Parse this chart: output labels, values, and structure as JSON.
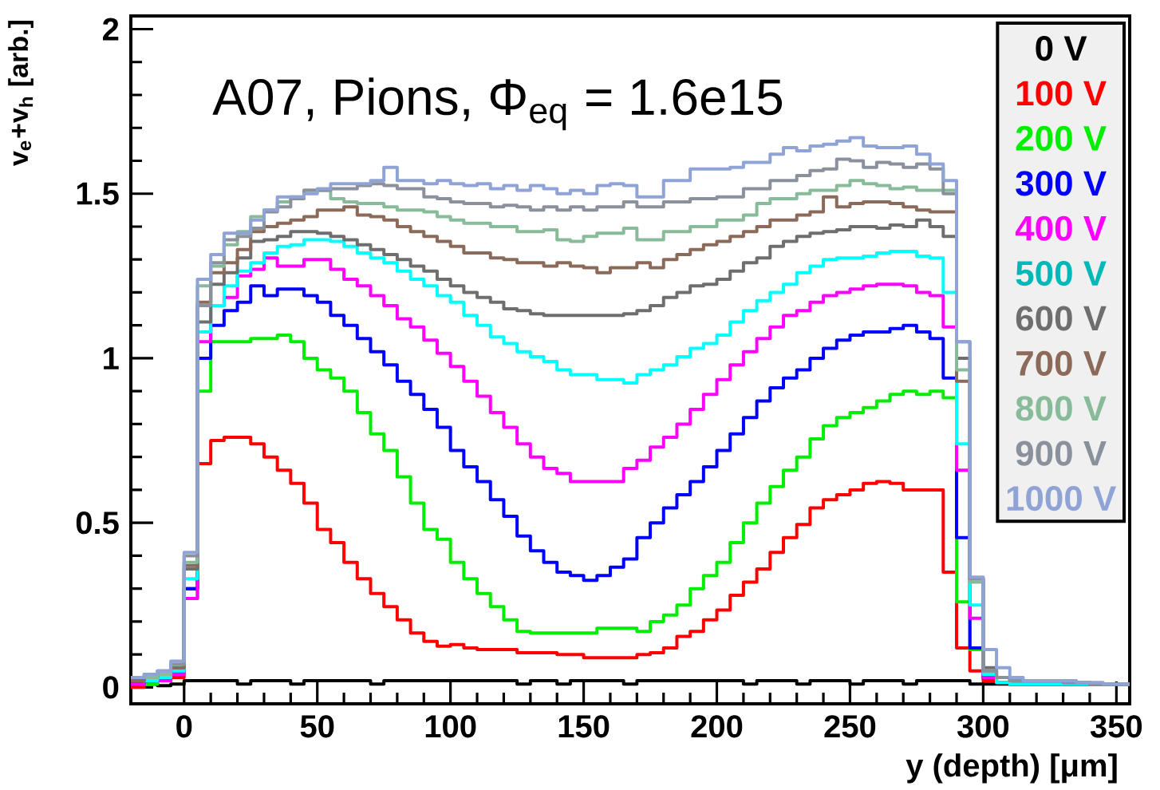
{
  "chart_data": {
    "type": "histogram",
    "annotations": [
      "A07, Pions, Φ$_{eq}$ = 1.6e15"
    ],
    "xlabel": "y (depth) [μm]",
    "ylabel": "v$_{e}$+v$_{h}$ [arb.]",
    "xlim": [
      -20,
      355
    ],
    "ylim": [
      -0.05,
      2.04
    ],
    "xticks": [
      0,
      50,
      100,
      150,
      200,
      250,
      300,
      350
    ],
    "yticks": [
      0,
      0.5,
      1,
      1.5,
      2
    ],
    "legend": "top right",
    "bins": [
      -20,
      -15,
      -10,
      -5,
      0,
      5,
      10,
      15,
      20,
      25,
      30,
      35,
      40,
      45,
      50,
      55,
      60,
      65,
      70,
      75,
      80,
      85,
      90,
      95,
      100,
      105,
      110,
      115,
      120,
      125,
      130,
      135,
      140,
      145,
      150,
      155,
      160,
      165,
      170,
      175,
      180,
      185,
      190,
      195,
      200,
      205,
      210,
      215,
      220,
      225,
      230,
      235,
      240,
      245,
      250,
      255,
      260,
      265,
      270,
      275,
      280,
      285,
      290,
      295,
      300,
      305,
      310,
      315,
      320,
      325,
      330,
      335,
      340,
      345,
      350,
      355
    ],
    "series": [
      {
        "name": "0 V",
        "color": "#000000",
        "values": [
          0.01,
          0.01,
          0.005,
          0.01,
          0.02,
          0.02,
          0.02,
          0.02,
          0.01,
          0.02,
          0.02,
          0.02,
          0.01,
          0.02,
          0.02,
          0.02,
          0.02,
          0.02,
          0.01,
          0.02,
          0.02,
          0.02,
          0.02,
          0.02,
          0.02,
          0.02,
          0.02,
          0.02,
          0.02,
          0.01,
          0.02,
          0.02,
          0.01,
          0.02,
          0.02,
          0.02,
          0.02,
          0.01,
          0.02,
          0.02,
          0.02,
          0.02,
          0.02,
          0.02,
          0.02,
          0.02,
          0.01,
          0.02,
          0.02,
          0.02,
          0.01,
          0.02,
          0.02,
          0.02,
          0.01,
          0.02,
          0.02,
          0.02,
          0.01,
          0.02,
          0.02,
          0.02,
          0.02,
          0.01,
          0.01,
          0.01,
          0.01,
          0.01,
          0.01,
          0.01,
          0.01,
          0.01,
          0.01,
          0.01,
          0.01
        ]
      },
      {
        "name": "100 V",
        "color": "#ff0000",
        "values": [
          0.0,
          0.01,
          0.02,
          0.03,
          0.3,
          0.68,
          0.75,
          0.76,
          0.76,
          0.74,
          0.7,
          0.66,
          0.62,
          0.56,
          0.48,
          0.44,
          0.38,
          0.33,
          0.285,
          0.245,
          0.205,
          0.165,
          0.14,
          0.125,
          0.13,
          0.12,
          0.115,
          0.115,
          0.115,
          0.105,
          0.105,
          0.105,
          0.1,
          0.1,
          0.09,
          0.09,
          0.09,
          0.09,
          0.1,
          0.105,
          0.12,
          0.155,
          0.17,
          0.205,
          0.235,
          0.28,
          0.32,
          0.36,
          0.41,
          0.455,
          0.495,
          0.545,
          0.57,
          0.585,
          0.6,
          0.62,
          0.625,
          0.62,
          0.6,
          0.6,
          0.6,
          0.35,
          0.12,
          0.05,
          0.02,
          0.015,
          0.01,
          0.01,
          0.01,
          0.01,
          0.01,
          0.01,
          0.01,
          0.01,
          0.01
        ]
      },
      {
        "name": "200 V",
        "color": "#00ee00",
        "values": [
          0.01,
          0.01,
          0.02,
          0.04,
          0.27,
          0.9,
          1.05,
          1.05,
          1.05,
          1.06,
          1.06,
          1.07,
          1.05,
          1.0,
          0.965,
          0.94,
          0.9,
          0.835,
          0.77,
          0.72,
          0.64,
          0.56,
          0.48,
          0.45,
          0.38,
          0.33,
          0.285,
          0.245,
          0.205,
          0.17,
          0.165,
          0.165,
          0.165,
          0.165,
          0.165,
          0.18,
          0.18,
          0.18,
          0.17,
          0.2,
          0.22,
          0.25,
          0.3,
          0.34,
          0.38,
          0.44,
          0.5,
          0.56,
          0.61,
          0.66,
          0.7,
          0.755,
          0.795,
          0.82,
          0.835,
          0.85,
          0.87,
          0.89,
          0.9,
          0.89,
          0.9,
          0.88,
          0.26,
          0.115,
          0.04,
          0.015,
          0.01,
          0.01,
          0.01,
          0.01,
          0.01,
          0.01,
          0.01,
          0.01,
          0.01
        ]
      },
      {
        "name": "300 V",
        "color": "#0000ff",
        "values": [
          0.01,
          0.02,
          0.02,
          0.05,
          0.3,
          1.0,
          1.1,
          1.145,
          1.17,
          1.22,
          1.19,
          1.21,
          1.21,
          1.19,
          1.17,
          1.13,
          1.1,
          1.06,
          1.02,
          0.98,
          0.93,
          0.89,
          0.845,
          0.79,
          0.72,
          0.67,
          0.625,
          0.57,
          0.52,
          0.46,
          0.415,
          0.38,
          0.35,
          0.34,
          0.325,
          0.34,
          0.365,
          0.39,
          0.455,
          0.5,
          0.545,
          0.585,
          0.625,
          0.67,
          0.72,
          0.77,
          0.82,
          0.87,
          0.91,
          0.94,
          0.965,
          1.0,
          1.03,
          1.055,
          1.07,
          1.08,
          1.08,
          1.09,
          1.1,
          1.08,
          1.06,
          0.94,
          0.455,
          0.12,
          0.03,
          0.015,
          0.01,
          0.01,
          0.01,
          0.01,
          0.01,
          0.01,
          0.01,
          0.01,
          0.01
        ]
      },
      {
        "name": "400 V",
        "color": "#ff00ff",
        "values": [
          0.01,
          0.02,
          0.02,
          0.04,
          0.27,
          1.05,
          1.16,
          1.185,
          1.25,
          1.27,
          1.305,
          1.28,
          1.28,
          1.3,
          1.3,
          1.27,
          1.24,
          1.22,
          1.19,
          1.16,
          1.12,
          1.095,
          1.055,
          1.015,
          0.975,
          0.93,
          0.885,
          0.835,
          0.79,
          0.74,
          0.7,
          0.665,
          0.65,
          0.625,
          0.625,
          0.625,
          0.625,
          0.665,
          0.69,
          0.73,
          0.76,
          0.8,
          0.845,
          0.89,
          0.935,
          0.98,
          1.02,
          1.06,
          1.095,
          1.13,
          1.145,
          1.17,
          1.19,
          1.2,
          1.21,
          1.22,
          1.225,
          1.225,
          1.22,
          1.2,
          1.19,
          1.095,
          0.66,
          0.21,
          0.03,
          0.015,
          0.01,
          0.01,
          0.01,
          0.01,
          0.01,
          0.01,
          0.01,
          0.01,
          0.01
        ]
      },
      {
        "name": "500 V",
        "color": "#00ffff",
        "values": [
          0.02,
          0.02,
          0.03,
          0.05,
          0.33,
          1.08,
          1.16,
          1.22,
          1.265,
          1.29,
          1.32,
          1.34,
          1.345,
          1.36,
          1.36,
          1.355,
          1.34,
          1.32,
          1.305,
          1.29,
          1.265,
          1.24,
          1.22,
          1.19,
          1.17,
          1.13,
          1.1,
          1.065,
          1.045,
          1.02,
          1.005,
          0.99,
          0.965,
          0.95,
          0.95,
          0.935,
          0.935,
          0.925,
          0.95,
          0.965,
          0.98,
          1.005,
          1.03,
          1.045,
          1.07,
          1.11,
          1.145,
          1.175,
          1.2,
          1.225,
          1.26,
          1.28,
          1.3,
          1.305,
          1.305,
          1.31,
          1.32,
          1.325,
          1.325,
          1.31,
          1.305,
          1.2,
          0.74,
          0.25,
          0.04,
          0.015,
          0.01,
          0.01,
          0.01,
          0.01,
          0.01,
          0.01,
          0.01,
          0.01,
          0.01
        ]
      },
      {
        "name": "600 V",
        "color": "#6e6e6e",
        "values": [
          0.02,
          0.03,
          0.04,
          0.06,
          0.36,
          1.11,
          1.225,
          1.26,
          1.305,
          1.355,
          1.36,
          1.37,
          1.385,
          1.385,
          1.38,
          1.37,
          1.36,
          1.345,
          1.33,
          1.315,
          1.3,
          1.28,
          1.265,
          1.24,
          1.22,
          1.2,
          1.185,
          1.17,
          1.15,
          1.145,
          1.135,
          1.13,
          1.13,
          1.13,
          1.13,
          1.13,
          1.13,
          1.135,
          1.145,
          1.16,
          1.185,
          1.2,
          1.22,
          1.225,
          1.24,
          1.265,
          1.29,
          1.305,
          1.34,
          1.355,
          1.37,
          1.38,
          1.385,
          1.39,
          1.4,
          1.4,
          1.395,
          1.405,
          1.4,
          1.42,
          1.4,
          1.37,
          1.0,
          0.33,
          0.06,
          0.03,
          0.02,
          0.02,
          0.02,
          0.02,
          0.015,
          0.015,
          0.01,
          0.01,
          0.01
        ]
      },
      {
        "name": "700 V",
        "color": "#8b6a5a",
        "values": [
          0.02,
          0.03,
          0.04,
          0.06,
          0.37,
          1.17,
          1.26,
          1.29,
          1.33,
          1.385,
          1.4,
          1.41,
          1.42,
          1.43,
          1.45,
          1.45,
          1.46,
          1.435,
          1.43,
          1.42,
          1.4,
          1.385,
          1.37,
          1.355,
          1.34,
          1.32,
          1.32,
          1.305,
          1.3,
          1.29,
          1.29,
          1.28,
          1.29,
          1.28,
          1.275,
          1.26,
          1.275,
          1.275,
          1.29,
          1.275,
          1.3,
          1.315,
          1.33,
          1.345,
          1.355,
          1.37,
          1.385,
          1.4,
          1.42,
          1.42,
          1.435,
          1.445,
          1.49,
          1.46,
          1.47,
          1.475,
          1.475,
          1.47,
          1.46,
          1.45,
          1.445,
          1.445,
          0.93,
          0.33,
          0.05,
          0.03,
          0.02,
          0.02,
          0.02,
          0.02,
          0.015,
          0.015,
          0.01,
          0.01,
          0.01
        ]
      },
      {
        "name": "800 V",
        "color": "#88bb99",
        "values": [
          0.03,
          0.03,
          0.04,
          0.07,
          0.38,
          1.22,
          1.28,
          1.345,
          1.385,
          1.43,
          1.45,
          1.475,
          1.49,
          1.51,
          1.51,
          1.485,
          1.475,
          1.47,
          1.47,
          1.46,
          1.45,
          1.45,
          1.445,
          1.43,
          1.42,
          1.41,
          1.41,
          1.4,
          1.4,
          1.385,
          1.385,
          1.39,
          1.36,
          1.355,
          1.37,
          1.38,
          1.38,
          1.395,
          1.36,
          1.36,
          1.385,
          1.385,
          1.4,
          1.4,
          1.42,
          1.42,
          1.435,
          1.47,
          1.485,
          1.485,
          1.5,
          1.51,
          1.51,
          1.525,
          1.54,
          1.53,
          1.525,
          1.515,
          1.52,
          1.51,
          1.51,
          1.51,
          0.965,
          0.32,
          0.05,
          0.03,
          0.02,
          0.02,
          0.02,
          0.02,
          0.015,
          0.015,
          0.01,
          0.01,
          0.01
        ]
      },
      {
        "name": "900 V",
        "color": "#8a919c",
        "values": [
          0.03,
          0.04,
          0.05,
          0.07,
          0.4,
          1.16,
          1.29,
          1.36,
          1.37,
          1.395,
          1.445,
          1.46,
          1.485,
          1.51,
          1.51,
          1.515,
          1.515,
          1.525,
          1.53,
          1.525,
          1.515,
          1.515,
          1.49,
          1.485,
          1.475,
          1.47,
          1.47,
          1.46,
          1.465,
          1.46,
          1.45,
          1.46,
          1.45,
          1.46,
          1.45,
          1.46,
          1.46,
          1.475,
          1.46,
          1.46,
          1.475,
          1.475,
          1.485,
          1.485,
          1.49,
          1.49,
          1.515,
          1.515,
          1.54,
          1.54,
          1.555,
          1.57,
          1.575,
          1.605,
          1.6,
          1.58,
          1.595,
          1.59,
          1.58,
          1.59,
          1.575,
          1.5,
          1.05,
          0.33,
          0.05,
          0.03,
          0.02,
          0.02,
          0.02,
          0.02,
          0.015,
          0.015,
          0.01,
          0.01,
          0.01
        ]
      },
      {
        "name": "1000 V",
        "color": "#8fa3d6",
        "values": [
          0.03,
          0.04,
          0.05,
          0.08,
          0.41,
          1.24,
          1.315,
          1.38,
          1.38,
          1.42,
          1.45,
          1.49,
          1.49,
          1.5,
          1.515,
          1.53,
          1.53,
          1.53,
          1.54,
          1.58,
          1.54,
          1.54,
          1.53,
          1.54,
          1.53,
          1.525,
          1.53,
          1.515,
          1.525,
          1.51,
          1.525,
          1.515,
          1.5,
          1.51,
          1.5,
          1.525,
          1.53,
          1.525,
          1.49,
          1.49,
          1.54,
          1.54,
          1.575,
          1.575,
          1.575,
          1.58,
          1.595,
          1.595,
          1.62,
          1.64,
          1.63,
          1.645,
          1.65,
          1.66,
          1.67,
          1.645,
          1.64,
          1.64,
          1.645,
          1.62,
          1.59,
          1.54,
          1.05,
          0.335,
          0.115,
          0.06,
          0.03,
          0.02,
          0.02,
          0.02,
          0.02,
          0.015,
          0.015,
          0.01,
          0.01
        ]
      }
    ]
  }
}
